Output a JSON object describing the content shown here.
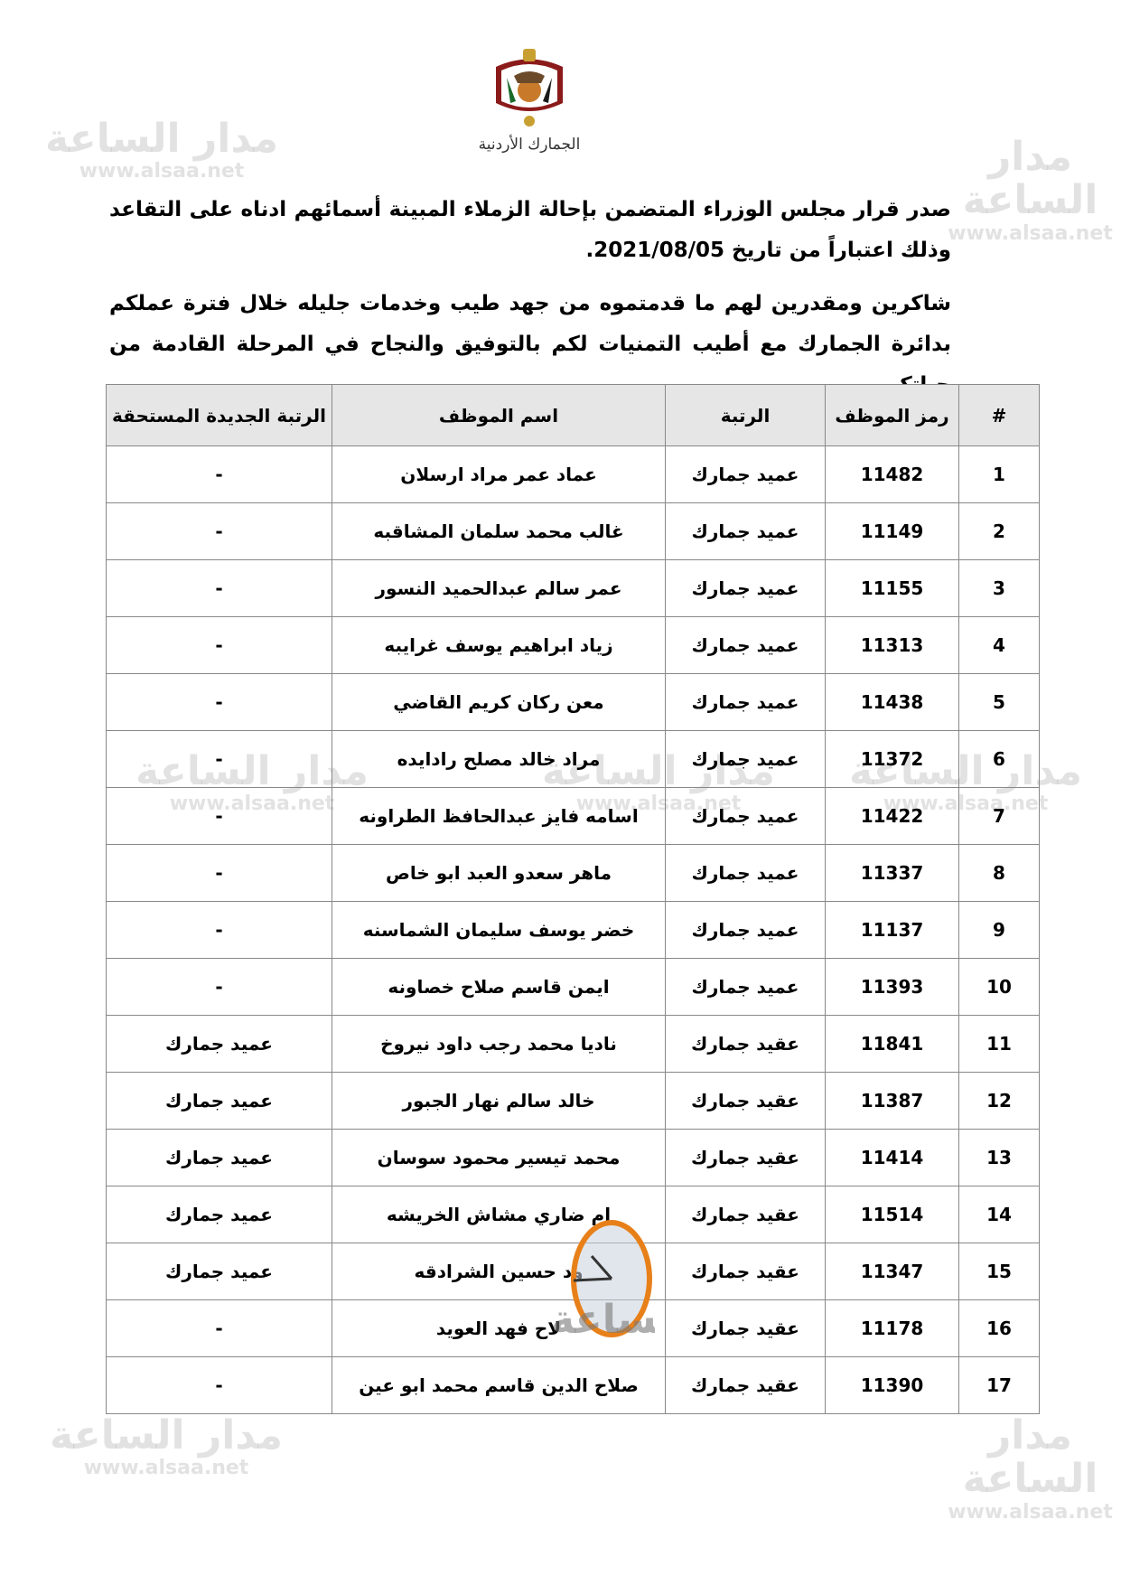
{
  "header": {
    "emblem": "jordan-coat-of-arms",
    "caption": "الجمارك الأردنية"
  },
  "body": {
    "paragraph1": "صدر قرار مجلس الوزراء المتضمن بإحالة الزملاء المبينة أسمائهم ادناه على التقاعد وذلك اعتباراً من تاريخ 2021/08/05.",
    "paragraph2": "شاكرين ومقدرين لهم ما قدمتموه من جهد طيب وخدمات جليله خلال فترة عملكم بدائرة الجمارك مع أطيب التمنيات لكم بالتوفيق والنجاح في المرحلة القادمة من حياتكم."
  },
  "table": {
    "headers": [
      "#",
      "رمز الموظف",
      "الرتبة",
      "اسم الموظف",
      "الرتبة الجديدة المستحقة"
    ],
    "rows": [
      [
        "1",
        "11482",
        "عميد جمارك",
        "عماد عمر مراد ارسلان",
        "-"
      ],
      [
        "2",
        "11149",
        "عميد جمارك",
        "غالب محمد سلمان المشاقبه",
        "-"
      ],
      [
        "3",
        "11155",
        "عميد جمارك",
        "عمر سالم عبدالحميد النسور",
        "-"
      ],
      [
        "4",
        "11313",
        "عميد جمارك",
        "زياد ابراهيم يوسف غرايبه",
        "-"
      ],
      [
        "5",
        "11438",
        "عميد جمارك",
        "معن ركان كريم القاضي",
        "-"
      ],
      [
        "6",
        "11372",
        "عميد جمارك",
        "مراد خالد مصلح رادايده",
        "-"
      ],
      [
        "7",
        "11422",
        "عميد جمارك",
        "اسامه فايز عبدالحافظ الطراونه",
        "-"
      ],
      [
        "8",
        "11337",
        "عميد جمارك",
        "ماهر سعدو العبد ابو خاص",
        "-"
      ],
      [
        "9",
        "11137",
        "عميد جمارك",
        "خضر يوسف سليمان الشماسنه",
        "-"
      ],
      [
        "10",
        "11393",
        "عميد جمارك",
        "ايمن قاسم صلاح خصاونه",
        "-"
      ],
      [
        "11",
        "11841",
        "عقيد جمارك",
        "ناديا محمد رجب داود نيروخ",
        "عميد جمارك"
      ],
      [
        "12",
        "11387",
        "عقيد جمارك",
        "خالد سالم نهار الجبور",
        "عميد جمارك"
      ],
      [
        "13",
        "11414",
        "عقيد جمارك",
        "محمد تيسير محمود سوسان",
        "عميد جمارك"
      ],
      [
        "14",
        "11514",
        "عقيد جمارك",
        "ام ضاري مشاش الخريشه",
        "عميد جمارك"
      ],
      [
        "15",
        "11347",
        "عقيد جمارك",
        "ود حسين الشرادقه",
        "عميد جمارك"
      ],
      [
        "16",
        "11178",
        "عقيد جمارك",
        "لاح فهد العويد",
        "-"
      ],
      [
        "17",
        "11390",
        "عقيد جمارك",
        "صلاح الدين قاسم محمد ابو عين",
        "-"
      ]
    ]
  },
  "watermark": {
    "name": "مدار الساعة",
    "site": "www.alsaa.net"
  }
}
